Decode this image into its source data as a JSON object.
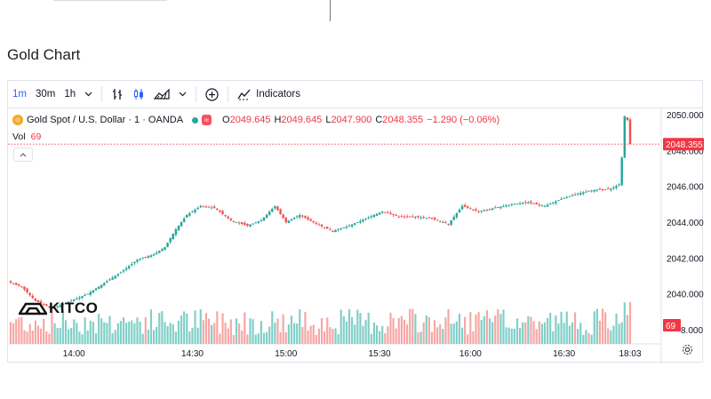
{
  "page": {
    "title": "Gold Chart"
  },
  "toolbar": {
    "intervals": [
      "1m",
      "30m",
      "1h"
    ],
    "active_interval": "1m",
    "indicators_label": "Indicators",
    "icons": [
      "chevron-down-icon",
      "bar-style-icon",
      "candles-icon",
      "area-chart-icon",
      "chevron-down-icon",
      "plus-circle-icon",
      "indicators-icon"
    ]
  },
  "legend": {
    "symbol": "Gold Spot / U.S. Dollar · 1 · OANDA",
    "badge": "≈",
    "o_label": "O",
    "o": "2049.645",
    "h_label": "H",
    "h": "2049.645",
    "l_label": "L",
    "l": "2047.900",
    "c_label": "C",
    "c": "2048.355",
    "change": "−1.290 (−0.06%)",
    "vol_label": "Vol",
    "vol_value": "69"
  },
  "watermark": "KITCO",
  "colors": {
    "up": "#26a69a",
    "down": "#ef5350",
    "vol_up": "#7fcfc6",
    "vol_down": "#f7a6a4",
    "price_line": "#f23645",
    "accent": "#2962ff"
  },
  "chart_data": {
    "type": "candlestick",
    "title": "",
    "xlabel": "",
    "ylabel": "",
    "x_ticks": [
      "14:00",
      "14:30",
      "15:00",
      "15:30",
      "16:00",
      "16:30",
      "18:03"
    ],
    "y_ticks": [
      "2040.000",
      "2042.000",
      "2044.000",
      "2046.000",
      "2048.000",
      "2050.000"
    ],
    "ylim": [
      2037.2,
      2050.4
    ],
    "last_price": "2048.355",
    "last_volume": "69",
    "vol_axis_label": "8.000",
    "grid": false,
    "close_path": [
      {
        "t": 0,
        "v": 2040.6
      },
      {
        "t": 4,
        "v": 2040.4
      },
      {
        "t": 9,
        "v": 2039.6
      },
      {
        "t": 15,
        "v": 2039.2
      },
      {
        "t": 22,
        "v": 2039.6
      },
      {
        "t": 28,
        "v": 2040.0
      },
      {
        "t": 34,
        "v": 2040.6
      },
      {
        "t": 40,
        "v": 2041.2
      },
      {
        "t": 46,
        "v": 2041.9
      },
      {
        "t": 52,
        "v": 2042.2
      },
      {
        "t": 56,
        "v": 2042.6
      },
      {
        "t": 60,
        "v": 2043.6
      },
      {
        "t": 64,
        "v": 2044.4
      },
      {
        "t": 69,
        "v": 2044.9
      },
      {
        "t": 74,
        "v": 2044.8
      },
      {
        "t": 80,
        "v": 2044.1
      },
      {
        "t": 86,
        "v": 2043.8
      },
      {
        "t": 91,
        "v": 2044.1
      },
      {
        "t": 96,
        "v": 2044.9
      },
      {
        "t": 100,
        "v": 2044.0
      },
      {
        "t": 105,
        "v": 2044.4
      },
      {
        "t": 111,
        "v": 2043.9
      },
      {
        "t": 117,
        "v": 2043.5
      },
      {
        "t": 123,
        "v": 2043.8
      },
      {
        "t": 129,
        "v": 2044.2
      },
      {
        "t": 135,
        "v": 2044.6
      },
      {
        "t": 141,
        "v": 2044.3
      },
      {
        "t": 147,
        "v": 2044.3
      },
      {
        "t": 153,
        "v": 2044.2
      },
      {
        "t": 159,
        "v": 2043.9
      },
      {
        "t": 164,
        "v": 2044.9
      },
      {
        "t": 170,
        "v": 2044.6
      },
      {
        "t": 176,
        "v": 2044.8
      },
      {
        "t": 182,
        "v": 2045.0
      },
      {
        "t": 188,
        "v": 2045.1
      },
      {
        "t": 194,
        "v": 2044.9
      },
      {
        "t": 200,
        "v": 2045.3
      },
      {
        "t": 206,
        "v": 2045.6
      },
      {
        "t": 212,
        "v": 2045.8
      },
      {
        "t": 218,
        "v": 2045.85
      },
      {
        "t": 221,
        "v": 2046.1
      },
      {
        "t": 222,
        "v": 2047.6
      },
      {
        "t": 223,
        "v": 2049.9
      },
      {
        "t": 224,
        "v": 2049.7
      },
      {
        "t": 225,
        "v": 2048.355
      }
    ]
  }
}
